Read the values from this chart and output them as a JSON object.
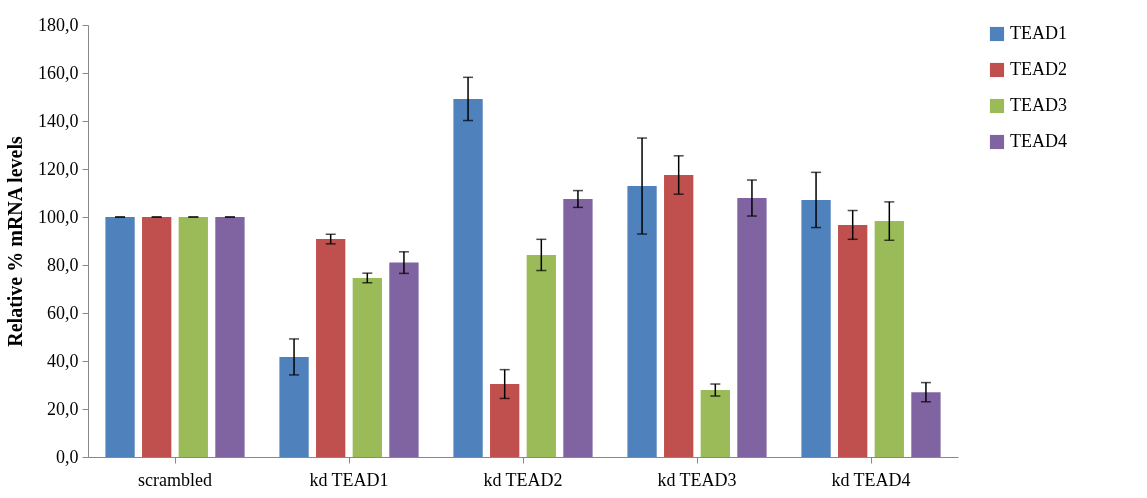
{
  "chart_data": {
    "type": "bar",
    "ylabel": "Relative % mRNA levels",
    "categories": [
      "scrambled",
      "kd TEAD1",
      "kd TEAD2",
      "kd TEAD3",
      "kd TEAD4"
    ],
    "series": [
      {
        "name": "TEAD1",
        "color": "#4f81bd",
        "values": [
          100,
          41.7,
          149.2,
          112.9,
          107.1
        ],
        "errors": [
          0,
          7.5,
          9,
          20,
          11.5
        ]
      },
      {
        "name": "TEAD2",
        "color": "#c0504d",
        "values": [
          100,
          90.8,
          30.4,
          117.5,
          96.7
        ],
        "errors": [
          0,
          2,
          6,
          8,
          6
        ]
      },
      {
        "name": "TEAD3",
        "color": "#9bbb59",
        "values": [
          100,
          74.6,
          84.2,
          27.9,
          98.3
        ],
        "errors": [
          0,
          2,
          6.5,
          2.5,
          8
        ]
      },
      {
        "name": "TEAD4",
        "color": "#8064a2",
        "values": [
          100,
          81,
          107.5,
          107.9,
          27
        ],
        "errors": [
          0,
          4.5,
          3.5,
          7.5,
          4
        ]
      }
    ],
    "ylim": [
      0,
      180
    ],
    "yticks": [
      {
        "value": 0,
        "label": "0,0"
      },
      {
        "value": 20,
        "label": "20,0"
      },
      {
        "value": 40,
        "label": "40,0"
      },
      {
        "value": 60,
        "label": "60,0"
      },
      {
        "value": 80,
        "label": "80,0"
      },
      {
        "value": 100,
        "label": "100,0"
      },
      {
        "value": 120,
        "label": "120,0"
      },
      {
        "value": 140,
        "label": "140,0"
      },
      {
        "value": 160,
        "label": "160,0"
      },
      {
        "value": 180,
        "label": "180,0"
      }
    ],
    "grid": false,
    "legend": "right"
  }
}
